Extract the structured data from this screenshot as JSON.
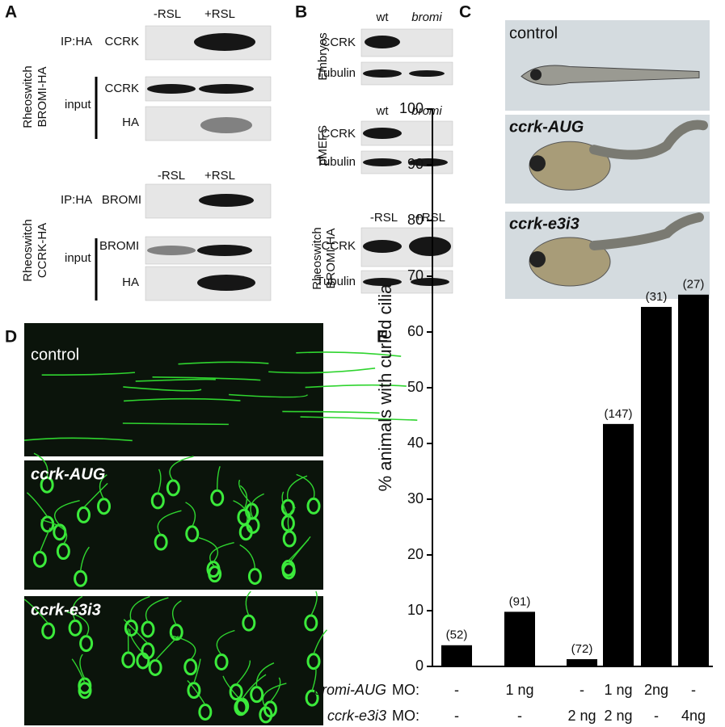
{
  "panel_a": {
    "label": "A",
    "top": {
      "lanes": [
        "-RSL",
        "+RSL"
      ],
      "group": [
        "Rheoswitch",
        "BROMI-HA"
      ],
      "ip": "IP:HA",
      "ip_blot": "CCRK",
      "input": "input",
      "input_blots": [
        "CCRK",
        "HA"
      ]
    },
    "bottom": {
      "lanes": [
        "-RSL",
        "+RSL"
      ],
      "group": [
        "Rheoswitch",
        "CCRK-HA"
      ],
      "ip": "IP:HA",
      "ip_blot": "BROMI",
      "input": "input",
      "input_blots": [
        "BROMI",
        "HA"
      ]
    }
  },
  "panel_b": {
    "label": "B",
    "sections": [
      {
        "lanes": [
          "wt",
          "bromi"
        ],
        "side": [
          "Embryos"
        ],
        "blots": [
          "CCRK",
          "Tubulin"
        ]
      },
      {
        "lanes": [
          "wt",
          "bromi"
        ],
        "side": [
          "pMEFS"
        ],
        "blots": [
          "CCRK",
          "Tubulin"
        ]
      },
      {
        "lanes": [
          "-RSL",
          "+RSL"
        ],
        "side": [
          "Rheoswitch",
          "BROMI-HA"
        ],
        "blots": [
          "CCRK",
          "Tubulin"
        ]
      }
    ]
  },
  "panel_c": {
    "label": "C",
    "images": [
      "control",
      "ccrk-AUG",
      "ccrk-e3i3"
    ]
  },
  "panel_d": {
    "label": "D",
    "images": [
      "control",
      "ccrk-AUG",
      "ccrk-e3i3"
    ]
  },
  "panel_e": {
    "label": "E"
  },
  "chart_data": {
    "type": "bar",
    "ylabel": "% animals with curled cilia",
    "values": [
      3.8,
      9.8,
      1.3,
      43.5,
      64.5,
      66.7
    ],
    "annotations": [
      "(52)",
      "(91)",
      "(72)",
      "(147)",
      "(31)",
      "(27)"
    ],
    "category_rows": [
      {
        "name": "bromi-AUG",
        "suffix": "MO:",
        "values": [
          "-",
          "1 ng",
          "-",
          "1 ng",
          "2ng",
          "-"
        ]
      },
      {
        "name": "ccrk-e3i3",
        "suffix": "MO:",
        "values": [
          "-",
          "-",
          "2 ng",
          "2 ng",
          "-",
          "4ng"
        ]
      }
    ],
    "color": "#000000",
    "ylim": [
      0,
      100
    ],
    "yticks": [
      0,
      10,
      20,
      30,
      40,
      50,
      60,
      70,
      80,
      90,
      100
    ]
  }
}
